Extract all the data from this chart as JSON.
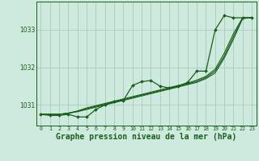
{
  "background_color": "#ceeade",
  "grid_color": "#aaccbb",
  "line_color": "#1a5e1a",
  "xlabel": "Graphe pression niveau de la mer (hPa)",
  "xlabel_fontsize": 7,
  "ylabel_ticks": [
    1031,
    1032,
    1033
  ],
  "xlim": [
    -0.5,
    23.5
  ],
  "ylim": [
    1030.45,
    1033.75
  ],
  "x_ticks": [
    0,
    1,
    2,
    3,
    4,
    5,
    6,
    7,
    8,
    9,
    10,
    11,
    12,
    13,
    14,
    15,
    16,
    17,
    18,
    19,
    20,
    21,
    22,
    23
  ],
  "series": {
    "main": [
      1030.75,
      1030.72,
      1030.72,
      1030.75,
      1030.68,
      1030.68,
      1030.88,
      1031.0,
      1031.1,
      1031.12,
      1031.52,
      1031.62,
      1031.65,
      1031.5,
      1031.45,
      1031.5,
      1031.6,
      1031.9,
      1031.9,
      1033.0,
      1033.38,
      1033.32,
      1033.32,
      1033.32
    ],
    "smooth1": [
      1030.75,
      1030.75,
      1030.75,
      1030.78,
      1030.82,
      1030.88,
      1030.94,
      1031.0,
      1031.06,
      1031.12,
      1031.18,
      1031.24,
      1031.3,
      1031.36,
      1031.42,
      1031.48,
      1031.54,
      1031.6,
      1031.7,
      1031.85,
      1032.25,
      1032.75,
      1033.3,
      1033.32
    ],
    "smooth2": [
      1030.75,
      1030.75,
      1030.75,
      1030.78,
      1030.83,
      1030.9,
      1030.96,
      1031.02,
      1031.08,
      1031.14,
      1031.2,
      1031.26,
      1031.32,
      1031.38,
      1031.44,
      1031.5,
      1031.56,
      1031.63,
      1031.73,
      1031.9,
      1032.3,
      1032.82,
      1033.32,
      1033.32
    ],
    "smooth3": [
      1030.75,
      1030.75,
      1030.75,
      1030.78,
      1030.84,
      1030.92,
      1030.98,
      1031.04,
      1031.1,
      1031.16,
      1031.22,
      1031.28,
      1031.34,
      1031.4,
      1031.46,
      1031.52,
      1031.58,
      1031.66,
      1031.76,
      1031.95,
      1032.38,
      1032.9,
      1033.32,
      1033.32
    ]
  }
}
